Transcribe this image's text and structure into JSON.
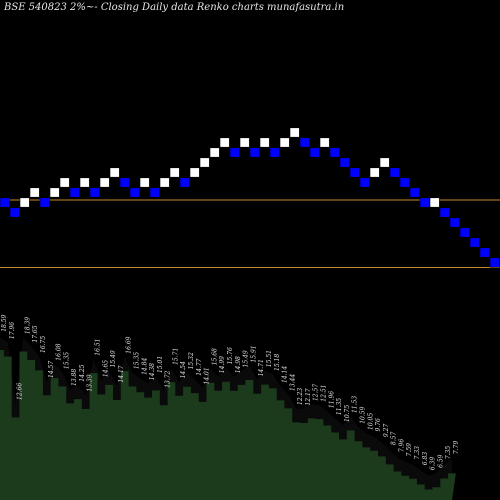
{
  "chart_data": {
    "type": "renko",
    "title": "BSE 540823 2%~- Closing Daily data  Renko  charts munafasutra.in",
    "colors": {
      "background": "#000000",
      "up_brick": "#ffffff",
      "down_brick": "#0000ff",
      "reference_line": "#c8862a",
      "volume_area": "#1c3a1c",
      "volume_shade": "#0a0a0a",
      "labels": "#e6e6e6"
    },
    "reference_lines": [
      19.2,
      16.5
    ],
    "bricks": [
      {
        "level": 19.1,
        "dir": "down"
      },
      {
        "level": 18.7,
        "dir": "down"
      },
      {
        "level": 19.1,
        "dir": "up"
      },
      {
        "level": 19.5,
        "dir": "up"
      },
      {
        "level": 19.1,
        "dir": "down"
      },
      {
        "level": 19.5,
        "dir": "up"
      },
      {
        "level": 19.9,
        "dir": "up"
      },
      {
        "level": 19.5,
        "dir": "down"
      },
      {
        "level": 19.9,
        "dir": "up"
      },
      {
        "level": 19.5,
        "dir": "down"
      },
      {
        "level": 19.9,
        "dir": "up"
      },
      {
        "level": 20.3,
        "dir": "up"
      },
      {
        "level": 19.9,
        "dir": "down"
      },
      {
        "level": 19.5,
        "dir": "down"
      },
      {
        "level": 19.9,
        "dir": "up"
      },
      {
        "level": 19.5,
        "dir": "down"
      },
      {
        "level": 19.9,
        "dir": "up"
      },
      {
        "level": 20.3,
        "dir": "up"
      },
      {
        "level": 19.9,
        "dir": "down"
      },
      {
        "level": 20.3,
        "dir": "up"
      },
      {
        "level": 20.7,
        "dir": "up"
      },
      {
        "level": 21.1,
        "dir": "up"
      },
      {
        "level": 21.5,
        "dir": "up"
      },
      {
        "level": 21.1,
        "dir": "down"
      },
      {
        "level": 21.5,
        "dir": "up"
      },
      {
        "level": 21.1,
        "dir": "down"
      },
      {
        "level": 21.5,
        "dir": "up"
      },
      {
        "level": 21.1,
        "dir": "down"
      },
      {
        "level": 21.5,
        "dir": "up"
      },
      {
        "level": 21.9,
        "dir": "up"
      },
      {
        "level": 21.5,
        "dir": "down"
      },
      {
        "level": 21.1,
        "dir": "down"
      },
      {
        "level": 21.5,
        "dir": "up"
      },
      {
        "level": 21.1,
        "dir": "down"
      },
      {
        "level": 20.7,
        "dir": "down"
      },
      {
        "level": 20.3,
        "dir": "down"
      },
      {
        "level": 19.9,
        "dir": "down"
      },
      {
        "level": 20.3,
        "dir": "up"
      },
      {
        "level": 20.7,
        "dir": "up"
      },
      {
        "level": 20.3,
        "dir": "down"
      },
      {
        "level": 19.9,
        "dir": "down"
      },
      {
        "level": 19.5,
        "dir": "down"
      },
      {
        "level": 19.1,
        "dir": "down"
      },
      {
        "level": 19.1,
        "dir": "up"
      },
      {
        "level": 18.7,
        "dir": "down"
      },
      {
        "level": 18.3,
        "dir": "down"
      },
      {
        "level": 17.9,
        "dir": "down"
      },
      {
        "level": 17.5,
        "dir": "down"
      },
      {
        "level": 17.1,
        "dir": "down"
      },
      {
        "level": 16.7,
        "dir": "down"
      },
      {
        "level": 16.3,
        "dir": "down"
      },
      {
        "level": 15.9,
        "dir": "down"
      },
      {
        "level": 15.5,
        "dir": "down"
      },
      {
        "level": 15.1,
        "dir": "down"
      },
      {
        "level": 15.5,
        "dir": "up"
      },
      {
        "level": 15.9,
        "dir": "up"
      },
      {
        "level": 16.3,
        "dir": "up"
      }
    ],
    "volume_labels": [
      "18.59",
      "17.96",
      "12.66",
      "18.39",
      "17.65",
      "16.75",
      "14.57",
      "16.08",
      "15.35",
      "13.88",
      "14.25",
      "13.39",
      "16.51",
      "14.65",
      "15.49",
      "14.17",
      "16.69",
      "15.35",
      "14.84",
      "14.38",
      "15.01",
      "13.72",
      "15.71",
      "14.54",
      "15.32",
      "14.77",
      "14.01",
      "15.68",
      "14.99",
      "15.76",
      "14.98",
      "15.49",
      "15.91",
      "14.71",
      "15.51",
      "15.18",
      "14.14",
      "13.44",
      "12.23",
      "12.17",
      "12.57",
      "12.51",
      "11.96",
      "11.35",
      "10.75",
      "11.53",
      "10.59",
      "10.05",
      "9.76",
      "9.27",
      "8.57",
      "7.96",
      "7.59",
      "7.33",
      "6.83",
      "6.39",
      "6.59",
      "7.35",
      "7.79"
    ]
  }
}
